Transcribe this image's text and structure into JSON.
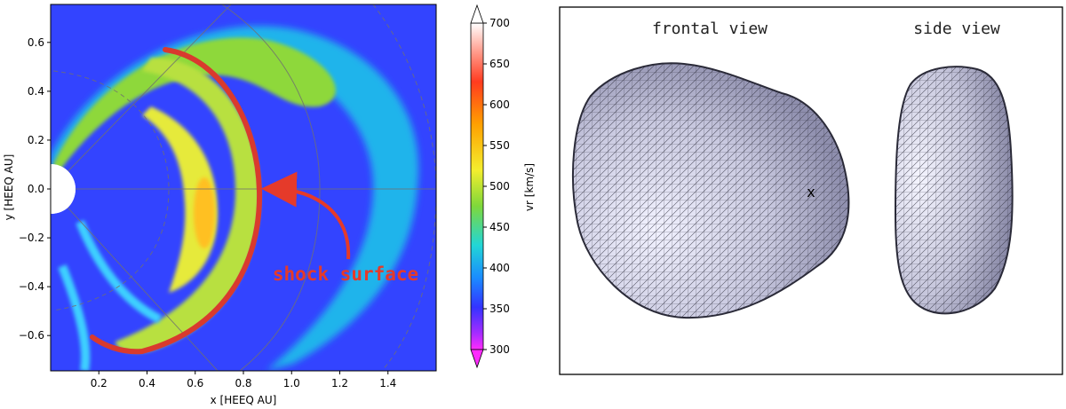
{
  "left_panel": {
    "xlabel": "x [HEEQ AU]",
    "ylabel": "y [HEEQ AU]",
    "x_ticks": [
      "0.2",
      "0.4",
      "0.6",
      "0.8",
      "1.0",
      "1.2",
      "1.4"
    ],
    "y_ticks": [
      "0.6",
      "0.4",
      "0.2",
      "0.0",
      "−0.2",
      "−0.4",
      "−0.6"
    ],
    "annotation": "shock surface",
    "annotation_color": "#e53a2a",
    "shock_color": "#d93a2e",
    "background_color": "#3344ff"
  },
  "colorbar": {
    "label": "vr  [km/s]",
    "ticks": [
      "700",
      "650",
      "600",
      "550",
      "500",
      "450",
      "400",
      "350",
      "300"
    ]
  },
  "right_panel": {
    "frontal_label": "frontal view",
    "side_label": "side view",
    "marker": "x"
  },
  "chart_data": {
    "type": "heatmap",
    "xlabel": "x [HEEQ AU]",
    "ylabel": "y [HEEQ AU]",
    "xlim": [
      0.0,
      1.6
    ],
    "ylim": [
      -0.75,
      0.75
    ],
    "colorbar_range": [
      300,
      700
    ],
    "colorbar_unit": "km/s"
  }
}
